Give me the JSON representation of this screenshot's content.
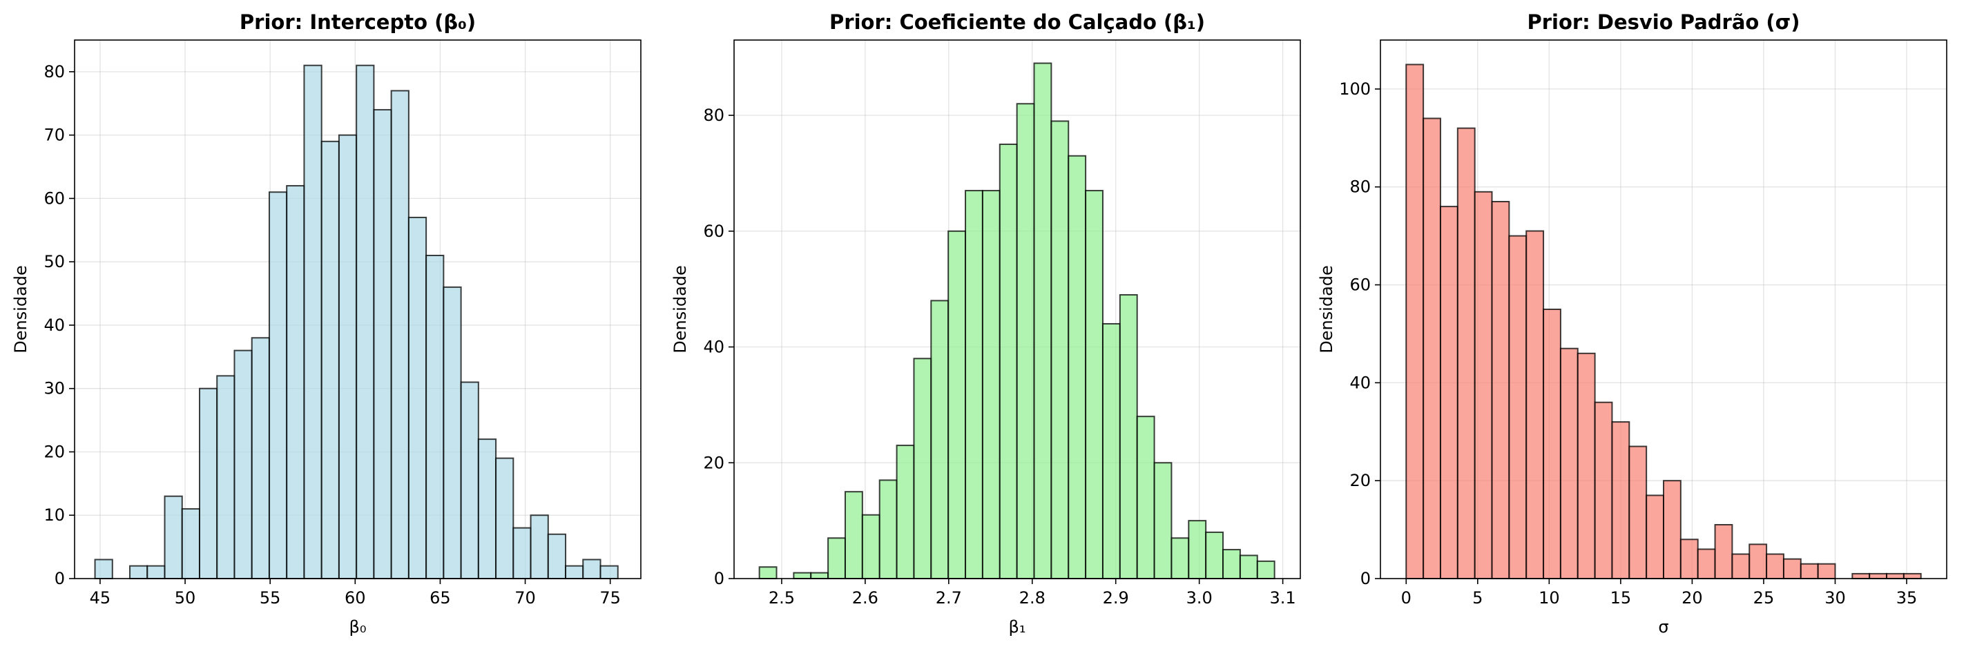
{
  "chart_data": [
    {
      "type": "bar",
      "subtype": "histogram",
      "title": "Prior: Intercepto (β₀)",
      "xlabel": "β₀",
      "ylabel": "Densidade",
      "xlim": [
        43.5,
        76.8
      ],
      "ylim": [
        0,
        85
      ],
      "xticks": [
        45,
        50,
        55,
        60,
        65,
        70,
        75
      ],
      "yticks": [
        0,
        10,
        20,
        30,
        40,
        50,
        60,
        70,
        80
      ],
      "bin_start": 44.7,
      "bin_width": 1.025,
      "values": [
        3,
        0,
        2,
        2,
        13,
        11,
        30,
        32,
        36,
        38,
        61,
        62,
        81,
        69,
        70,
        81,
        74,
        77,
        57,
        51,
        46,
        31,
        22,
        19,
        8,
        10,
        7,
        2,
        3,
        2
      ],
      "color": "#add8e6",
      "grid": true
    },
    {
      "type": "bar",
      "subtype": "histogram",
      "title": "Prior: Coeficiente do Calçado (β₁)",
      "xlabel": "β₁",
      "ylabel": "Densidade",
      "xlim": [
        2.443,
        3.121
      ],
      "ylim": [
        0,
        93
      ],
      "xticks": [
        2.5,
        2.6,
        2.7,
        2.8,
        2.9,
        3.0,
        3.1
      ],
      "yticks": [
        0,
        20,
        40,
        60,
        80
      ],
      "bin_start": 2.4733,
      "bin_width": 0.02056,
      "values": [
        2,
        0,
        1,
        1,
        7,
        15,
        11,
        17,
        23,
        38,
        48,
        60,
        67,
        67,
        75,
        82,
        89,
        79,
        73,
        67,
        44,
        49,
        28,
        20,
        7,
        10,
        8,
        5,
        4,
        3
      ],
      "color": "#90ee90",
      "grid": true
    },
    {
      "type": "bar",
      "subtype": "histogram",
      "title": "Prior: Desvio Padrão (σ)",
      "xlabel": "σ",
      "ylabel": "Densidade",
      "xlim": [
        -1.8,
        37.8
      ],
      "ylim": [
        0,
        110
      ],
      "xticks": [
        0,
        5,
        10,
        15,
        20,
        25,
        30,
        35
      ],
      "yticks": [
        0,
        20,
        40,
        60,
        80,
        100
      ],
      "bin_start": 0,
      "bin_width": 1.2,
      "values": [
        105,
        94,
        76,
        92,
        79,
        77,
        70,
        71,
        55,
        47,
        46,
        36,
        32,
        27,
        17,
        20,
        8,
        6,
        11,
        5,
        7,
        5,
        4,
        3,
        3,
        0,
        1,
        1,
        1,
        1
      ],
      "color": "#fa8072",
      "grid": true
    }
  ]
}
